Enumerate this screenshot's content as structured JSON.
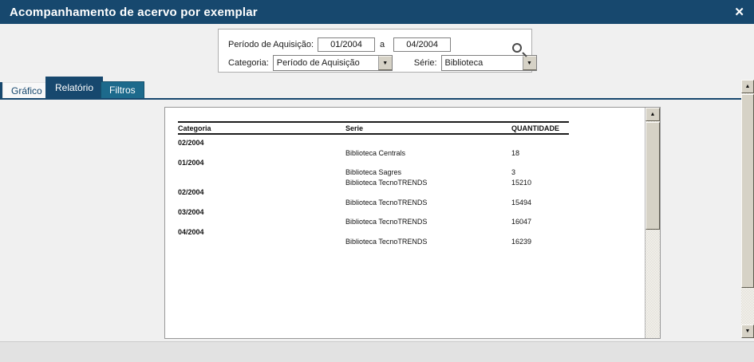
{
  "window": {
    "title": "Acompanhamento de acervo por exemplar"
  },
  "icons": {
    "close": "✕",
    "scroll_up": "▲",
    "scroll_down": "▼",
    "dropdown": "▼",
    "search": "magnifier"
  },
  "filters": {
    "period_label": "Período de Aquisição:",
    "period_from": "01/2004",
    "period_connector": "a",
    "period_to": "04/2004",
    "category_label": "Categoria:",
    "category_value": "Período de Aquisição",
    "series_label": "Série:",
    "series_value": "Biblioteca"
  },
  "tabs": [
    {
      "label": "Gráfico",
      "active": false
    },
    {
      "label": "Relatório",
      "active": true
    },
    {
      "label": "Filtros",
      "active": false
    }
  ],
  "report": {
    "columns": {
      "categoria": "Categoria",
      "serie": "Serie",
      "quantidade": "QUANTIDADE"
    },
    "rows": [
      {
        "cat": "02/2004",
        "serie": "",
        "qty": ""
      },
      {
        "cat": "",
        "serie": "Biblioteca Centrals",
        "qty": "18"
      },
      {
        "cat": "01/2004",
        "serie": "",
        "qty": ""
      },
      {
        "cat": "",
        "serie": "Biblioteca Sagres",
        "qty": "3"
      },
      {
        "cat": "",
        "serie": "Biblioteca TecnoTRENDS",
        "qty": "15210"
      },
      {
        "cat": "02/2004",
        "serie": "",
        "qty": ""
      },
      {
        "cat": "",
        "serie": "Biblioteca TecnoTRENDS",
        "qty": "15494"
      },
      {
        "cat": "03/2004",
        "serie": "",
        "qty": ""
      },
      {
        "cat": "",
        "serie": "Biblioteca TecnoTRENDS",
        "qty": "16047"
      },
      {
        "cat": "04/2004",
        "serie": "",
        "qty": ""
      },
      {
        "cat": "",
        "serie": "Biblioteca TecnoTRENDS",
        "qty": "16239"
      }
    ]
  },
  "colors": {
    "titlebar": "#17486E",
    "tab_active": "#17486E",
    "tab_filtros": "#1D6A8C",
    "accent_rule": "#17486E",
    "background": "#F0F0F0",
    "bottom_strip": "#E2E2E2",
    "scrollbar_face": "#D6D2C6"
  }
}
